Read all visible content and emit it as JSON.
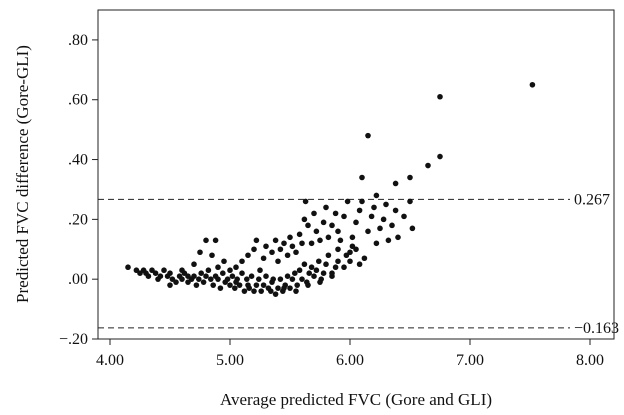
{
  "chart_data": {
    "type": "scatter",
    "xlabel": "Average predicted FVC (Gore and GLI)",
    "ylabel": "Predicted FVC difference (Gore-GLI)",
    "xlim": [
      3.9,
      8.2
    ],
    "ylim": [
      -0.2,
      0.9
    ],
    "x_ticks": [
      4.0,
      5.0,
      6.0,
      7.0,
      8.0
    ],
    "x_tick_labels": [
      "4.00",
      "5.00",
      "6.00",
      "7.00",
      "8.00"
    ],
    "y_ticks": [
      -0.2,
      0.0,
      0.2,
      0.4,
      0.6,
      0.8
    ],
    "y_tick_labels": [
      "−.20",
      ".00",
      ".20",
      ".40",
      ".60",
      ".80"
    ],
    "grid": false,
    "reference_lines": [
      {
        "y": 0.267,
        "label": "0.267"
      },
      {
        "y": -0.163,
        "label": "−0.163"
      }
    ],
    "points": [
      [
        4.15,
        0.04
      ],
      [
        4.22,
        0.03
      ],
      [
        4.25,
        0.02
      ],
      [
        4.28,
        0.03
      ],
      [
        4.3,
        0.02
      ],
      [
        4.32,
        0.01
      ],
      [
        4.35,
        0.03
      ],
      [
        4.38,
        0.02
      ],
      [
        4.4,
        0.0
      ],
      [
        4.42,
        0.01
      ],
      [
        4.45,
        0.03
      ],
      [
        4.48,
        0.01
      ],
      [
        4.5,
        0.02
      ],
      [
        4.52,
        0.0
      ],
      [
        4.55,
        -0.01
      ],
      [
        4.58,
        0.01
      ],
      [
        4.6,
        0.0
      ],
      [
        4.62,
        0.02
      ],
      [
        4.65,
        -0.01
      ],
      [
        4.68,
        0.0
      ],
      [
        4.7,
        0.01
      ],
      [
        4.72,
        -0.02
      ],
      [
        4.74,
        0.0
      ],
      [
        4.76,
        0.02
      ],
      [
        4.78,
        -0.01
      ],
      [
        4.8,
        0.01
      ],
      [
        4.82,
        0.03
      ],
      [
        4.84,
        0.0
      ],
      [
        4.86,
        -0.02
      ],
      [
        4.88,
        0.01
      ],
      [
        4.9,
        0.0
      ],
      [
        4.92,
        -0.03
      ],
      [
        4.94,
        0.02
      ],
      [
        4.96,
        -0.01
      ],
      [
        4.98,
        0.0
      ],
      [
        5.0,
        -0.02
      ],
      [
        5.02,
        0.01
      ],
      [
        5.04,
        -0.03
      ],
      [
        5.06,
        0.0
      ],
      [
        5.08,
        -0.02
      ],
      [
        5.1,
        0.02
      ],
      [
        5.12,
        -0.04
      ],
      [
        5.14,
        0.0
      ],
      [
        5.16,
        -0.03
      ],
      [
        5.18,
        0.01
      ],
      [
        5.2,
        -0.04
      ],
      [
        5.22,
        -0.02
      ],
      [
        5.24,
        0.0
      ],
      [
        5.26,
        -0.04
      ],
      [
        5.28,
        -0.02
      ],
      [
        5.3,
        0.01
      ],
      [
        5.32,
        -0.03
      ],
      [
        5.34,
        -0.04
      ],
      [
        5.36,
        0.0
      ],
      [
        5.38,
        -0.05
      ],
      [
        5.4,
        -0.03
      ],
      [
        5.42,
        0.0
      ],
      [
        5.44,
        -0.04
      ],
      [
        5.46,
        -0.02
      ],
      [
        5.48,
        0.01
      ],
      [
        5.5,
        -0.03
      ],
      [
        5.52,
        0.0
      ],
      [
        5.54,
        0.02
      ],
      [
        5.56,
        -0.02
      ],
      [
        5.58,
        0.03
      ],
      [
        5.6,
        0.0
      ],
      [
        5.62,
        0.05
      ],
      [
        5.64,
        -0.01
      ],
      [
        5.66,
        0.02
      ],
      [
        5.68,
        0.04
      ],
      [
        5.7,
        0.01
      ],
      [
        5.72,
        0.03
      ],
      [
        5.74,
        0.06
      ],
      [
        5.76,
        0.0
      ],
      [
        5.78,
        0.02
      ],
      [
        5.8,
        0.05
      ],
      [
        5.82,
        0.08
      ],
      [
        5.85,
        0.01
      ],
      [
        5.88,
        0.04
      ],
      [
        5.9,
        0.1
      ],
      [
        4.7,
        0.05
      ],
      [
        4.75,
        0.09
      ],
      [
        4.8,
        0.13
      ],
      [
        4.85,
        0.08
      ],
      [
        4.88,
        0.13
      ],
      [
        4.95,
        0.06
      ],
      [
        5.05,
        0.04
      ],
      [
        5.1,
        0.06
      ],
      [
        5.15,
        0.08
      ],
      [
        5.2,
        0.1
      ],
      [
        5.22,
        0.13
      ],
      [
        5.28,
        0.07
      ],
      [
        5.3,
        0.11
      ],
      [
        5.35,
        0.09
      ],
      [
        5.38,
        0.13
      ],
      [
        5.4,
        0.06
      ],
      [
        5.42,
        0.1
      ],
      [
        5.45,
        0.12
      ],
      [
        5.48,
        0.08
      ],
      [
        5.5,
        0.14
      ],
      [
        5.52,
        0.11
      ],
      [
        5.55,
        0.09
      ],
      [
        5.58,
        0.15
      ],
      [
        5.6,
        0.12
      ],
      [
        5.62,
        0.2
      ],
      [
        5.63,
        0.26
      ],
      [
        5.65,
        0.18
      ],
      [
        5.68,
        0.12
      ],
      [
        5.7,
        0.22
      ],
      [
        5.72,
        0.16
      ],
      [
        5.75,
        0.13
      ],
      [
        5.78,
        0.19
      ],
      [
        5.8,
        0.24
      ],
      [
        5.82,
        0.14
      ],
      [
        5.85,
        0.18
      ],
      [
        5.88,
        0.22
      ],
      [
        5.9,
        0.16
      ],
      [
        5.92,
        0.13
      ],
      [
        5.95,
        0.21
      ],
      [
        5.98,
        0.26
      ],
      [
        6.0,
        0.09
      ],
      [
        6.02,
        0.14
      ],
      [
        6.05,
        0.19
      ],
      [
        6.08,
        0.23
      ],
      [
        6.1,
        0.26
      ],
      [
        6.12,
        0.07
      ],
      [
        6.15,
        0.16
      ],
      [
        6.18,
        0.21
      ],
      [
        6.2,
        0.24
      ],
      [
        6.22,
        0.12
      ],
      [
        6.25,
        0.17
      ],
      [
        6.28,
        0.2
      ],
      [
        6.3,
        0.25
      ],
      [
        6.32,
        0.13
      ],
      [
        6.35,
        0.18
      ],
      [
        6.38,
        0.23
      ],
      [
        6.4,
        0.14
      ],
      [
        6.45,
        0.21
      ],
      [
        6.5,
        0.26
      ],
      [
        6.52,
        0.17
      ],
      [
        5.95,
        0.04
      ],
      [
        6.0,
        0.06
      ],
      [
        6.05,
        0.1
      ],
      [
        6.1,
        0.34
      ],
      [
        6.15,
        0.48
      ],
      [
        6.22,
        0.28
      ],
      [
        6.38,
        0.32
      ],
      [
        6.5,
        0.34
      ],
      [
        6.65,
        0.38
      ],
      [
        6.75,
        0.41
      ],
      [
        6.75,
        0.61
      ],
      [
        7.52,
        0.65
      ],
      [
        4.5,
        -0.02
      ],
      [
        4.6,
        0.03
      ],
      [
        4.65,
        0.01
      ],
      [
        4.9,
        0.04
      ],
      [
        5.0,
        0.03
      ],
      [
        5.05,
        -0.01
      ],
      [
        5.15,
        -0.02
      ],
      [
        5.25,
        0.03
      ],
      [
        5.35,
        -0.01
      ],
      [
        5.45,
        -0.03
      ],
      [
        5.55,
        -0.04
      ],
      [
        5.65,
        -0.02
      ],
      [
        5.75,
        -0.01
      ],
      [
        5.85,
        0.02
      ],
      [
        5.9,
        0.06
      ],
      [
        5.97,
        0.08
      ],
      [
        6.02,
        0.11
      ],
      [
        6.08,
        0.05
      ]
    ]
  }
}
